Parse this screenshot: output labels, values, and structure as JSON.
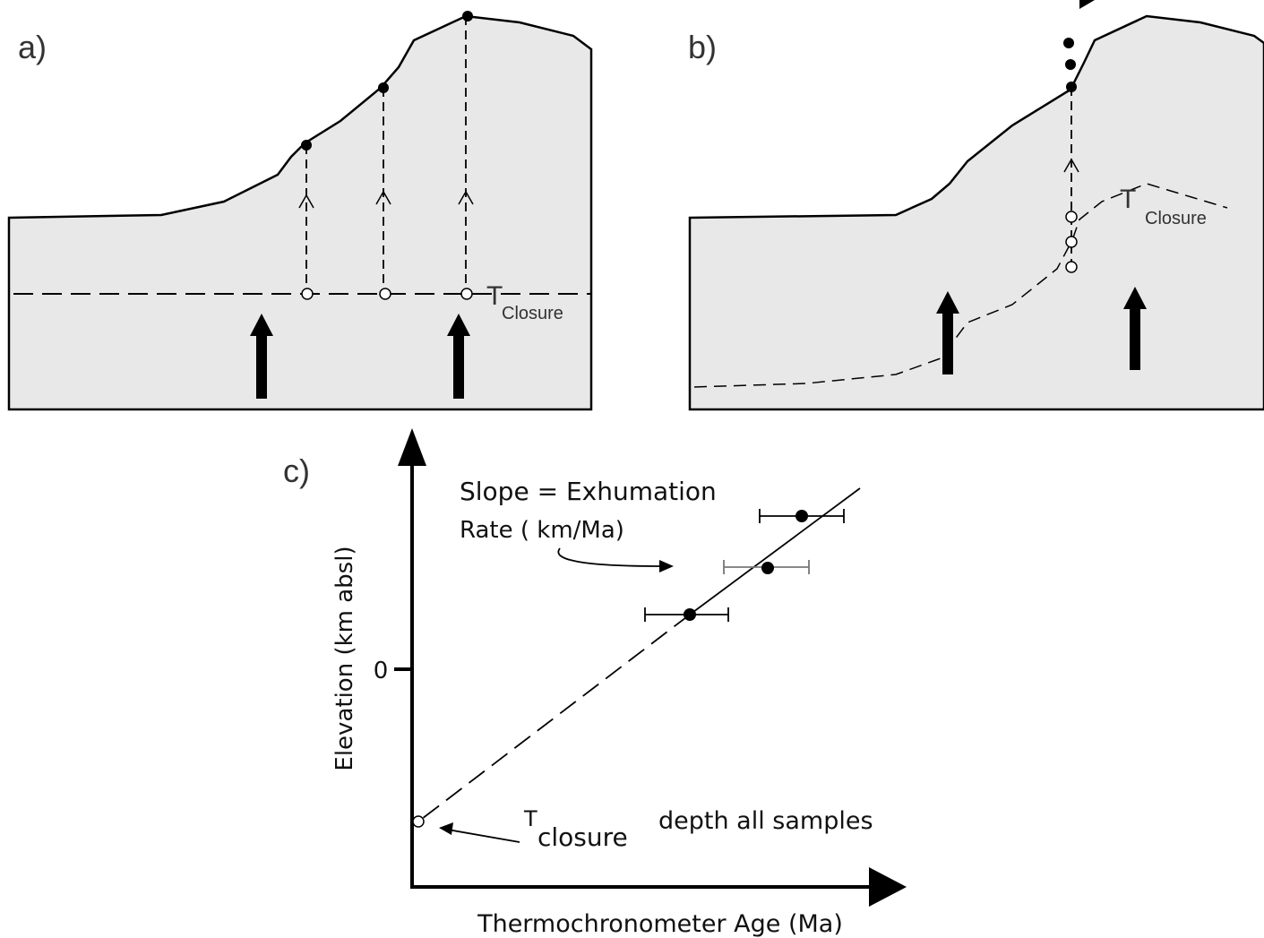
{
  "panels": [
    {
      "label": "a)",
      "annotation": {
        "main": "T",
        "sub": "Closure"
      }
    },
    {
      "label": "b)",
      "annotation": {
        "main": "T",
        "sub": "Closure"
      }
    },
    {
      "label": "c)",
      "y_axis_label": "Elevation (km absl)",
      "x_axis_label": "Thermochronometer Age (Ma)",
      "y_tick": "0",
      "slope_note": [
        "Slope = Exhumation",
        "Rate ( km/Ma)"
      ],
      "closure": {
        "main": "T",
        "sub": "closure"
      },
      "depth_note": "depth all samples"
    }
  ]
}
